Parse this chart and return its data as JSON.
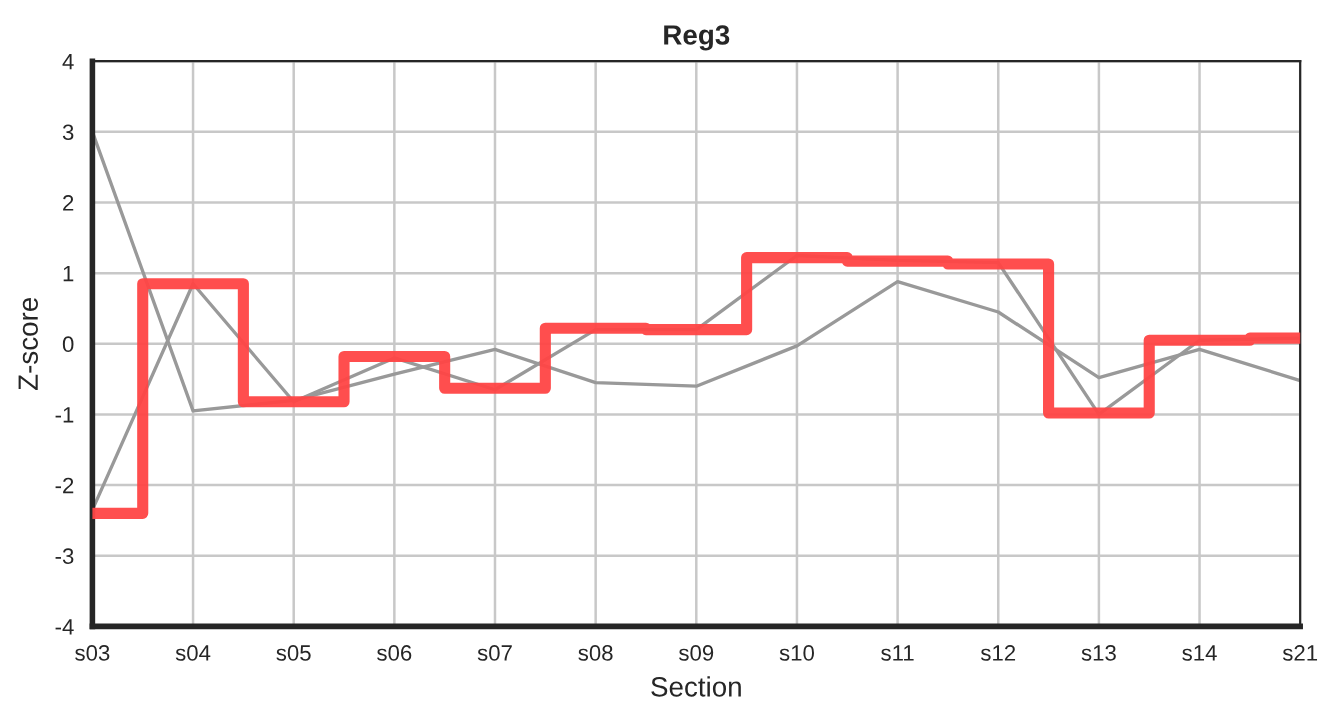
{
  "chart_data": {
    "type": "line",
    "title": "Reg3",
    "xlabel": "Section",
    "ylabel": "Z-score",
    "categories": [
      "s03",
      "s04",
      "s05",
      "s06",
      "s07",
      "s08",
      "s09",
      "s10",
      "s11",
      "s12",
      "s13",
      "s14",
      "s21"
    ],
    "series": [
      {
        "color": "#999999",
        "values": [
          3.0,
          -0.95,
          -0.8,
          -0.43,
          -0.08,
          -0.55,
          -0.6,
          -0.03,
          0.88,
          0.45,
          -0.48,
          -0.08,
          -0.52
        ]
      },
      {
        "color": "#999999",
        "values": [
          -2.35,
          0.85,
          -0.82,
          -0.2,
          -0.65,
          0.2,
          0.2,
          1.25,
          1.18,
          1.15,
          -1.0,
          0.05,
          0.08
        ]
      },
      {
        "type": "step",
        "color": "#ff4444",
        "values": [
          -2.4,
          0.85,
          -0.82,
          -0.18,
          -0.63,
          0.22,
          0.2,
          1.22,
          1.17,
          1.13,
          -0.98,
          0.05,
          0.08
        ]
      }
    ],
    "ylim": [
      -4,
      4
    ],
    "yticks": [
      -4,
      -3,
      -2,
      -1,
      0,
      1,
      2,
      3,
      4
    ],
    "grid": true,
    "legend": false
  }
}
